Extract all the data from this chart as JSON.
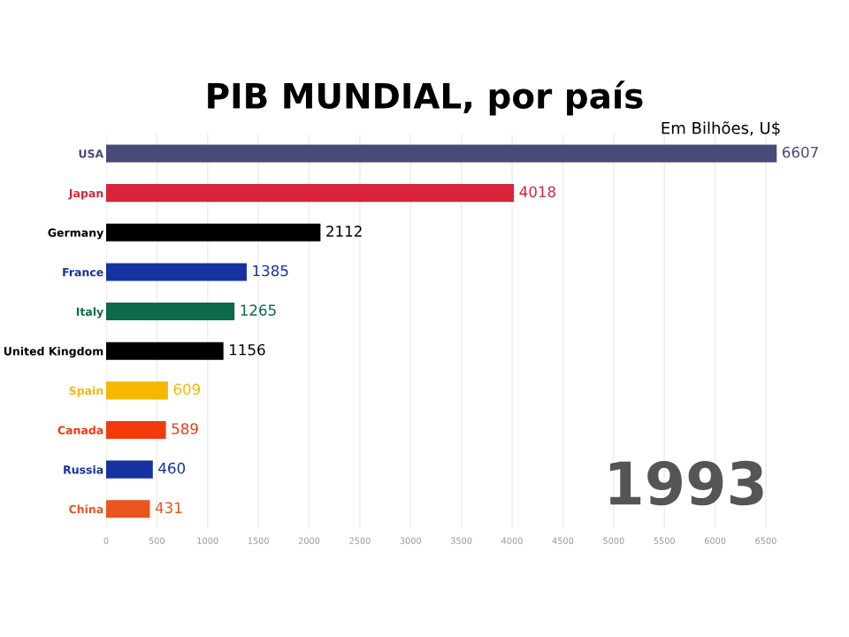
{
  "chart_data": {
    "type": "bar",
    "orientation": "horizontal",
    "title": "PIB MUNDIAL, por país",
    "subtitle": "Em Bilhões, U$",
    "annotations": [
      "1993"
    ],
    "categories": [
      "USA",
      "Japan",
      "Germany",
      "France",
      "Italy",
      "United Kingdom",
      "Spain",
      "Canada",
      "Russia",
      "China"
    ],
    "values": [
      6607,
      4018,
      2112,
      1385,
      1265,
      1156,
      609,
      589,
      460,
      431
    ],
    "colors": [
      "#4a4a7a",
      "#d9243a",
      "#000000",
      "#1432a0",
      "#0e6b4a",
      "#000000",
      "#f5b700",
      "#f23a0c",
      "#1432a0",
      "#e8561e"
    ],
    "data_labels": true,
    "xlim": [
      0,
      6650
    ],
    "xticks": [
      0,
      500,
      1000,
      1500,
      2000,
      2500,
      3000,
      3500,
      4000,
      4500,
      5000,
      5500,
      6000,
      6500
    ],
    "grid": "x"
  }
}
